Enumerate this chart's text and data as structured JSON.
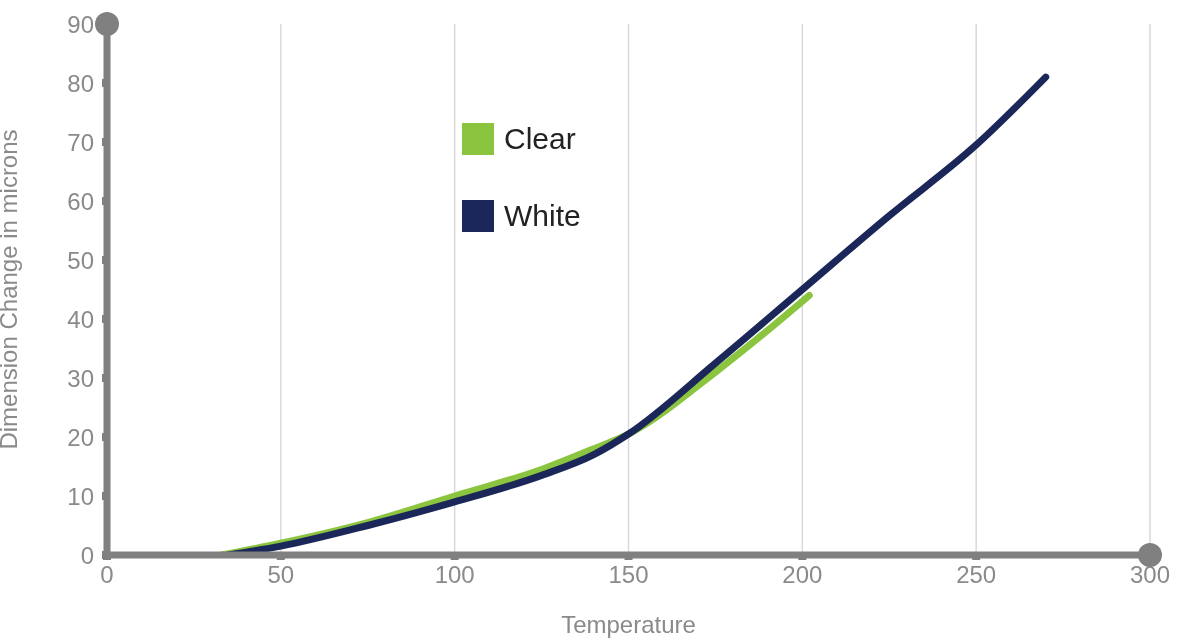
{
  "chart_data": {
    "type": "line",
    "xlabel": "Temperature",
    "ylabel": "Dimension Change in microns",
    "xlim": [
      0,
      300
    ],
    "xticks": [
      0,
      50,
      100,
      150,
      200,
      250,
      300
    ],
    "ylim": [
      0,
      90
    ],
    "yticks": [
      0,
      10,
      20,
      30,
      40,
      50,
      60,
      70,
      80,
      90
    ],
    "grid": "x",
    "legend": "top",
    "marker": "none",
    "line_style": "solid",
    "series": [
      {
        "name": "Clear",
        "color": "#8bc53f",
        "x": [
          33,
          50,
          75,
          100,
          125,
          140,
          150,
          175,
          200,
          202
        ],
        "values": [
          0,
          2,
          5.5,
          10,
          14.5,
          18,
          20.5,
          31,
          43,
          44
        ]
      },
      {
        "name": "White",
        "color": "#1b2759",
        "x": [
          35,
          50,
          75,
          100,
          125,
          140,
          150,
          175,
          200,
          225,
          250,
          270
        ],
        "values": [
          0,
          1.5,
          5,
          9,
          13.5,
          17,
          20.5,
          32.5,
          45,
          57.5,
          69.5,
          81
        ]
      }
    ]
  }
}
